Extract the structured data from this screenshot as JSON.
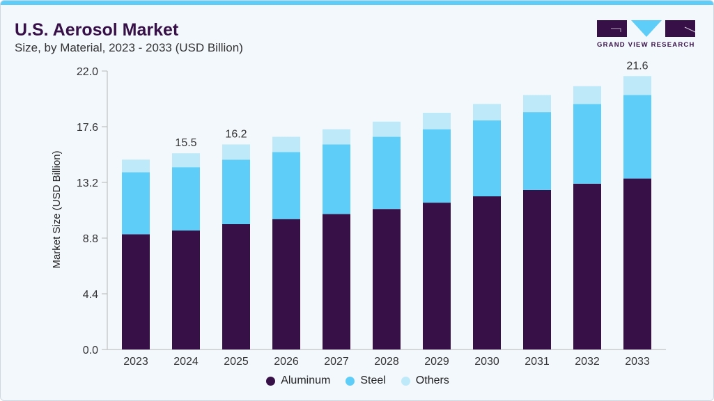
{
  "header": {
    "title": "U.S. Aerosol Market",
    "subtitle": "Size, by Material, 2023 - 2033 (USD Billion)"
  },
  "logo": {
    "text": "GRAND VIEW RESEARCH"
  },
  "colors": {
    "Aluminum": "#371047",
    "Steel": "#5ecdf7",
    "Others": "#bde9f9",
    "accent": "#5ecdf7",
    "background": "#f3f8fc"
  },
  "chart_data": {
    "type": "bar",
    "stacked": true,
    "title": "U.S. Aerosol Market",
    "subtitle": "Size, by Material, 2023 - 2033 (USD Billion)",
    "xlabel": "",
    "ylabel": "Market Size (USD Billion)",
    "ylim": [
      0,
      22
    ],
    "yticks": [
      "0.0",
      "4.4",
      "8.8",
      "13.2",
      "17.6",
      "22.0"
    ],
    "grid": false,
    "legend_position": "bottom",
    "categories": [
      "2023",
      "2024",
      "2025",
      "2026",
      "2027",
      "2028",
      "2029",
      "2030",
      "2031",
      "2032",
      "2033"
    ],
    "series": [
      {
        "name": "Aluminum",
        "values": [
          9.1,
          9.4,
          9.9,
          10.3,
          10.7,
          11.1,
          11.6,
          12.1,
          12.6,
          13.1,
          13.5
        ]
      },
      {
        "name": "Steel",
        "values": [
          4.9,
          5.0,
          5.1,
          5.3,
          5.5,
          5.7,
          5.8,
          6.0,
          6.15,
          6.3,
          6.6
        ]
      },
      {
        "name": "Others",
        "values": [
          1.0,
          1.1,
          1.2,
          1.2,
          1.2,
          1.2,
          1.3,
          1.3,
          1.35,
          1.4,
          1.5
        ]
      }
    ],
    "data_labels": [
      {
        "category": "2024",
        "text": "15.5"
      },
      {
        "category": "2025",
        "text": "16.2"
      },
      {
        "category": "2033",
        "text": "21.6"
      }
    ]
  }
}
